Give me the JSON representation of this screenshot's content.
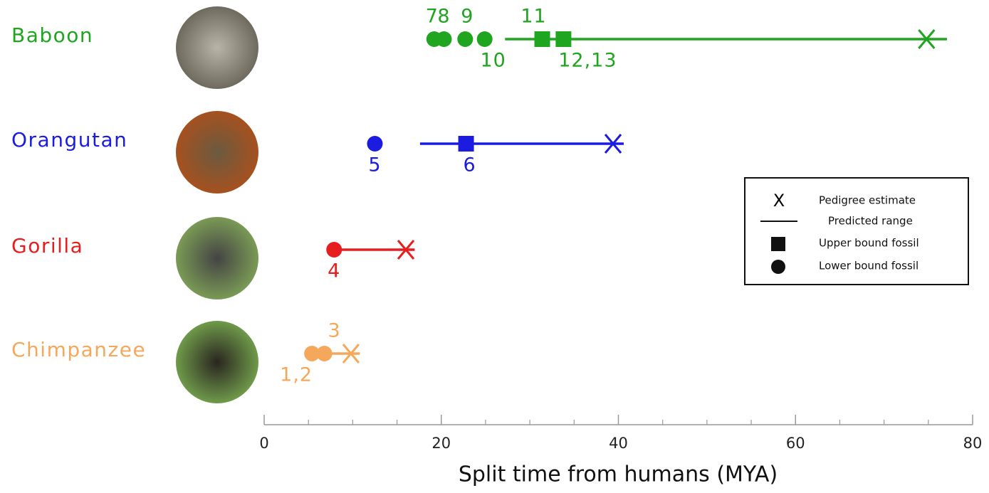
{
  "chart_data": {
    "type": "range",
    "xlabel": "Split time from humans (MYA)",
    "xlim": [
      0,
      80
    ],
    "xticks": [
      0,
      20,
      40,
      60,
      80
    ],
    "minor_xticks": [
      5,
      10,
      15,
      25,
      30,
      35,
      45,
      50,
      55,
      65,
      70,
      75
    ],
    "legend": {
      "estimate": "Pedigree estimate",
      "range": "Predicted range",
      "upper": "Upper bound fossil",
      "lower": "Lower bound fossil"
    },
    "rows": [
      {
        "name": "Baboon",
        "color": "#1fa51f",
        "range": [
          27.2,
          77.1
        ],
        "estimate": 74.8,
        "fossils": [
          {
            "kind": "lower",
            "value": 19.2,
            "label": "7"
          },
          {
            "kind": "lower",
            "value": 20.3,
            "label": "8"
          },
          {
            "kind": "lower",
            "value": 22.7,
            "label": "9"
          },
          {
            "kind": "lower",
            "value": 24.9,
            "label": "10"
          },
          {
            "kind": "upper",
            "value": 31.4,
            "label": "11"
          },
          {
            "kind": "upper",
            "value": 33.8,
            "label": "12,13"
          }
        ]
      },
      {
        "name": "Orangutan",
        "color": "#1c1ce0",
        "range": [
          17.6,
          40.6
        ],
        "estimate": 39.4,
        "fossils": [
          {
            "kind": "lower",
            "value": 12.5,
            "label": "5"
          },
          {
            "kind": "upper",
            "value": 22.8,
            "label": "6"
          }
        ]
      },
      {
        "name": "Gorilla",
        "color": "#e61e1e",
        "range": [
          7.9,
          17.0
        ],
        "estimate": 16.0,
        "fossils": [
          {
            "kind": "lower",
            "value": 7.9,
            "label": "4"
          }
        ]
      },
      {
        "name": "Chimpanzee",
        "color": "#f5a85c",
        "range": [
          6.8,
          10.8
        ],
        "estimate": 9.8,
        "fossils": [
          {
            "kind": "lower",
            "value": 5.4,
            "label": "1,2"
          },
          {
            "kind": "lower",
            "value": 6.8,
            "label": "3"
          }
        ]
      }
    ]
  }
}
